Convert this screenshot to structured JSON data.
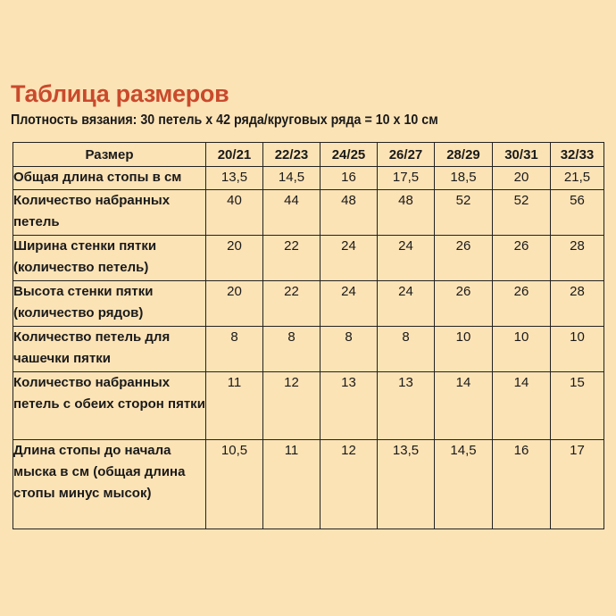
{
  "title": "Таблица размеров",
  "subtitle": "Плотность вязания: 30 петель x 42 ряда/круговых ряда = 10 x 10 см",
  "table": {
    "header_label": "Размер",
    "sizes": [
      "20/21",
      "22/23",
      "24/25",
      "26/27",
      "28/29",
      "30/31",
      "32/33"
    ],
    "rows": [
      {
        "label": "Общая длина стопы в см",
        "values": [
          "13,5",
          "14,5",
          "16",
          "17,5",
          "18,5",
          "20",
          "21,5"
        ]
      },
      {
        "label": "Количество набранных петель",
        "values": [
          "40",
          "44",
          "48",
          "48",
          "52",
          "52",
          "56"
        ]
      },
      {
        "label": "Ширина стенки пятки (количество петель)",
        "values": [
          "20",
          "22",
          "24",
          "24",
          "26",
          "26",
          "28"
        ]
      },
      {
        "label": "Высота стенки пятки (количество рядов)",
        "values": [
          "20",
          "22",
          "24",
          "24",
          "26",
          "26",
          "28"
        ]
      },
      {
        "label": "Количество петель для чашечки пятки",
        "values": [
          "8",
          "8",
          "8",
          "8",
          "10",
          "10",
          "10"
        ]
      },
      {
        "label": "Количество набранных петель с обеих сторон пятки",
        "values": [
          "11",
          "12",
          "13",
          "13",
          "14",
          "14",
          "15"
        ]
      },
      {
        "label": "Длина стопы до начала мыска в см (общая длина стопы минус мысок)",
        "values": [
          "10,5",
          "11",
          "12",
          "13,5",
          "14,5",
          "16",
          "17"
        ]
      }
    ]
  }
}
